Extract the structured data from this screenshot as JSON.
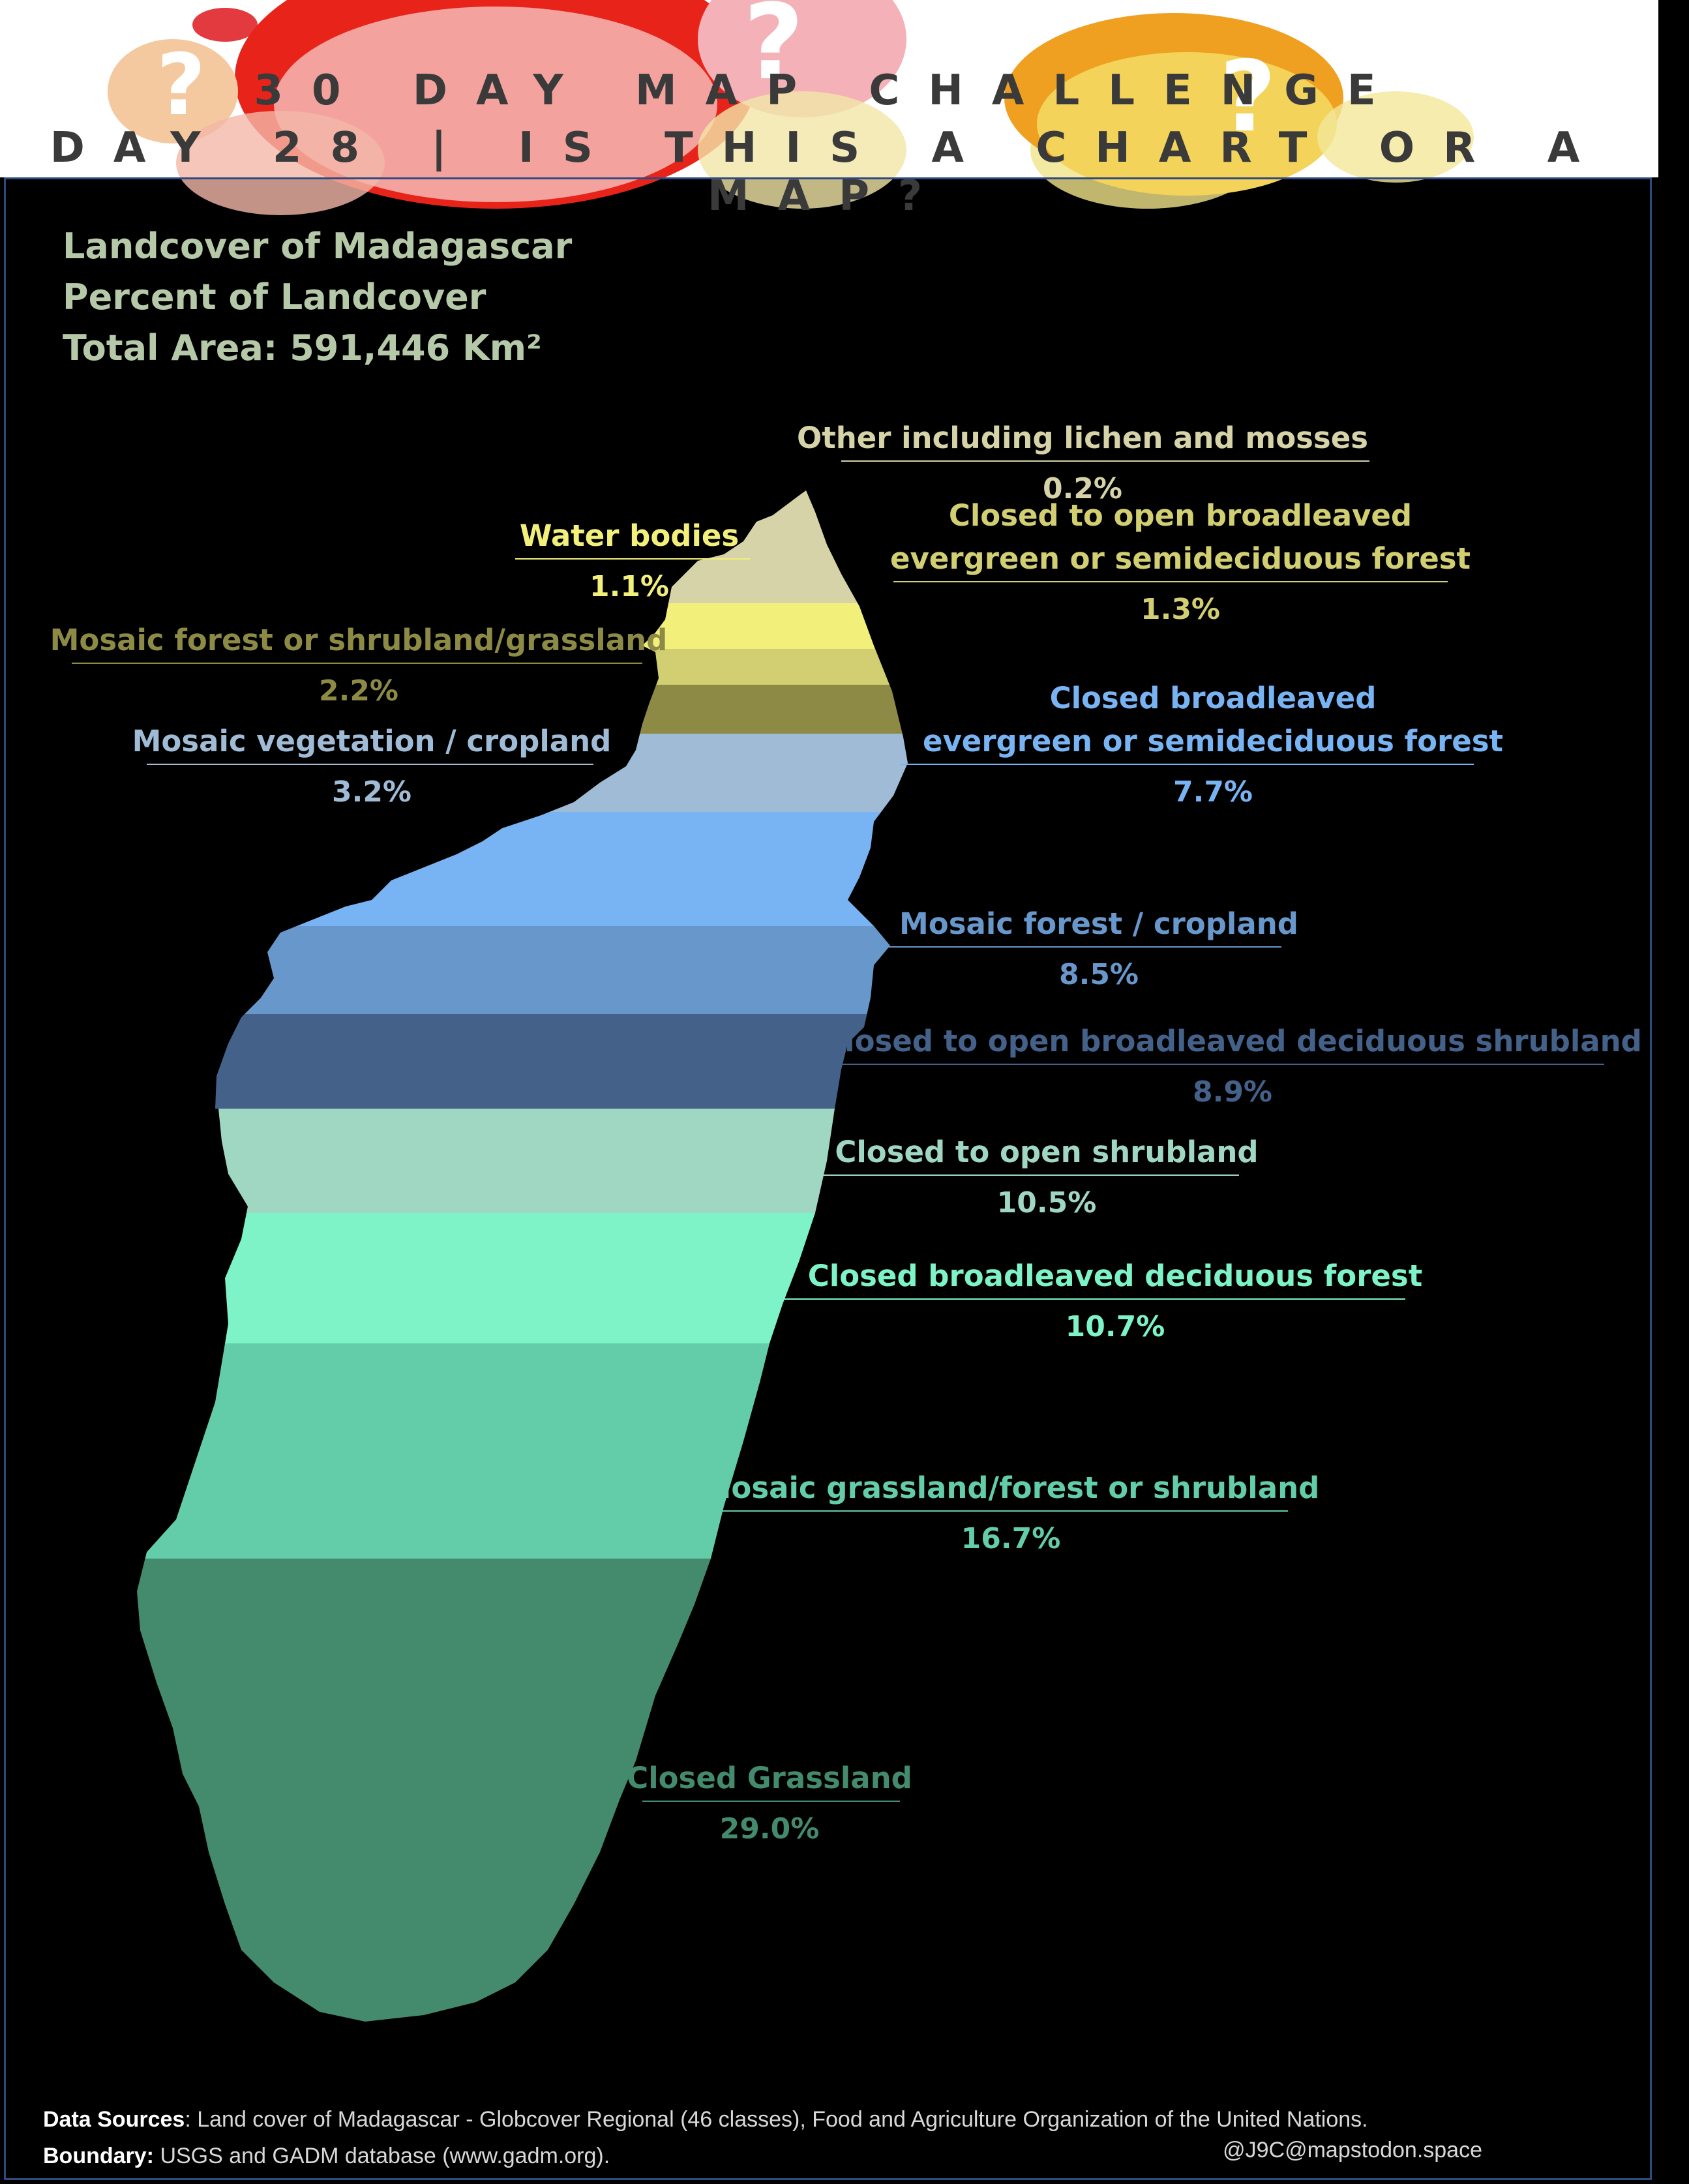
{
  "header": {
    "line1": "30 DAY MAP CHALLENGE",
    "line2": "DAY 28 | IS THIS A CHART OR A MAP?"
  },
  "colors": {
    "header_decoration": [
      "#e8241a",
      "#f4b2b8",
      "#f5c27a",
      "#f2e79a",
      "#f0a020"
    ]
  },
  "chart_data": {
    "type": "bar",
    "title": "Landcover of Madagascar",
    "subtitle": "Percent of Landcover",
    "total_area": "Total Area: 591,446 Km²",
    "unit": "%",
    "categories": [
      {
        "name": "Other including lichen and mosses",
        "pct_label": "0.2%",
        "value": 0.2,
        "color": "#d6d3a8"
      },
      {
        "name": "Water bodies",
        "pct_label": "1.1%",
        "value": 1.1,
        "color": "#f2f07a"
      },
      {
        "name": "Closed to open broadleaved evergreen or semideciduous forest",
        "lines": [
          "Closed to open broadleaved",
          "evergreen or semideciduous forest"
        ],
        "pct_label": "1.3%",
        "value": 1.3,
        "color": "#d2ce72"
      },
      {
        "name": "Mosaic forest or shrubland/grassland",
        "pct_label": "2.2%",
        "value": 2.2,
        "color": "#8c8a45"
      },
      {
        "name": "Mosaic vegetation / cropland",
        "pct_label": "3.2%",
        "value": 3.2,
        "color": "#9fbbd5"
      },
      {
        "name": "Closed broadleaved evergreen or semideciduous forest",
        "lines": [
          "Closed broadleaved",
          "evergreen or semideciduous forest"
        ],
        "pct_label": "7.7%",
        "value": 7.7,
        "color": "#78b4f3"
      },
      {
        "name": "Mosaic forest / cropland",
        "pct_label": "8.5%",
        "value": 8.5,
        "color": "#6897cc"
      },
      {
        "name": "Closed to open broadleaved deciduous shrubland",
        "pct_label": "8.9%",
        "value": 8.9,
        "color": "#44618a"
      },
      {
        "name": "Closed to open shrubland",
        "pct_label": "10.5%",
        "value": 10.5,
        "color": "#9fd7c2"
      },
      {
        "name": "Closed broadleaved deciduous forest",
        "pct_label": "10.7%",
        "value": 10.7,
        "color": "#7df3c7"
      },
      {
        "name": "Mosaic grassland/forest or shrubland",
        "pct_label": "16.7%",
        "value": 16.7,
        "color": "#63cca9"
      },
      {
        "name": "Closed Grassland",
        "pct_label": "29.0%",
        "value": 29.0,
        "color": "#448a6d"
      }
    ]
  },
  "footer": {
    "sources_label": "Data Sources",
    "sources_text": ": Land cover of Madagascar - Globcover Regional (46 classes), Food and Agriculture Organization of the United Nations.",
    "boundary_label": "Boundary:",
    "boundary_text": " USGS and GADM database (www.gadm.org).",
    "handle": "@J9C@mapstodon.space"
  }
}
